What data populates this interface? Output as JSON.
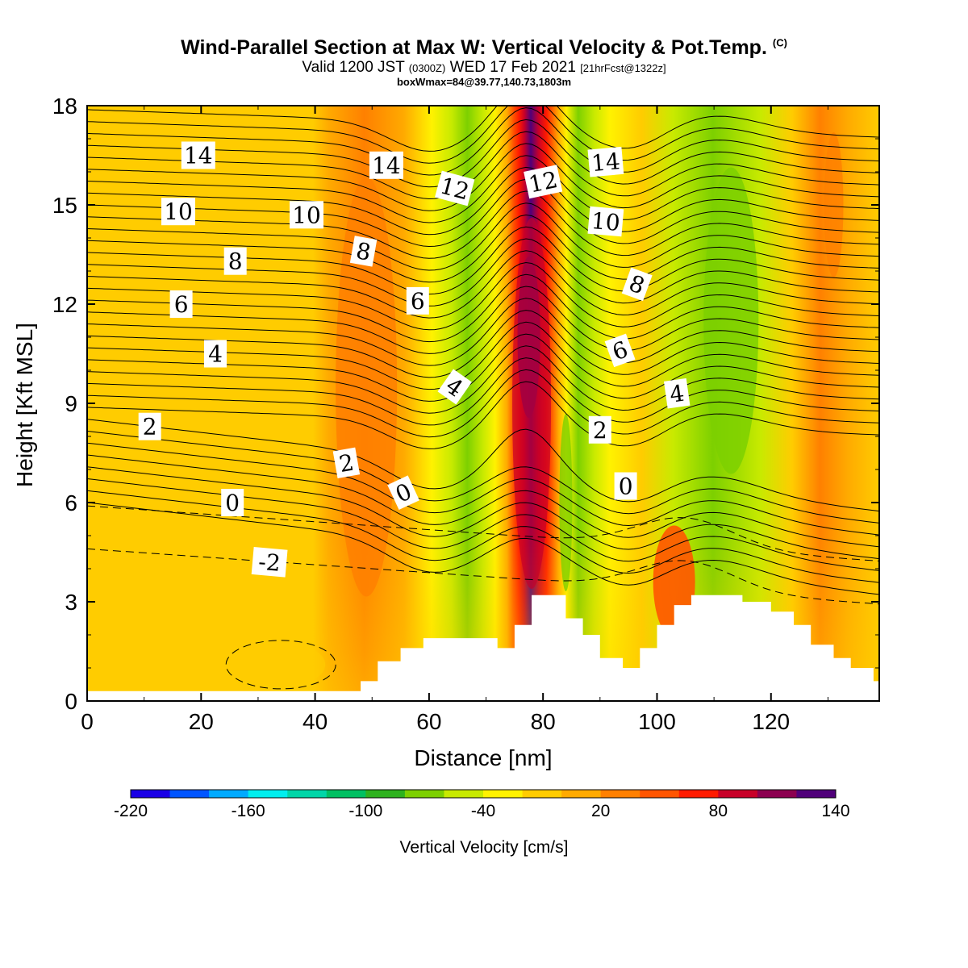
{
  "title": {
    "main": "Wind-Parallel Section at Max W: Vertical Velocity & Pot.Temp.",
    "copyright": "(C)",
    "valid_prefix": "Valid 1200 JST",
    "valid_zulu": "(0300Z)",
    "valid_date": "WED 17 Feb 2021",
    "forecast": "[21hrFcst@1322z]",
    "box_info": "boxWmax=84@39.77,140.73,1803m"
  },
  "chart_data": {
    "type": "heatmap",
    "xlabel": "Distance [nm]",
    "ylabel": "Height [Kft MSL]",
    "xlim": [
      0,
      139
    ],
    "ylim": [
      0,
      18
    ],
    "x_ticks": [
      "0",
      "20",
      "40",
      "60",
      "80",
      "100",
      "120"
    ],
    "y_ticks": [
      "0",
      "3",
      "6",
      "9",
      "12",
      "15",
      "18"
    ],
    "colorbar": {
      "label": "Vertical Velocity [cm/s]",
      "tick_labels": [
        "-220",
        "-160",
        "-100",
        "-40",
        "20",
        "80",
        "140"
      ],
      "range": [
        -220,
        140
      ],
      "colors": [
        "#1a00e6",
        "#0055ff",
        "#00aaff",
        "#00eeee",
        "#00d6a8",
        "#00c062",
        "#2eb21e",
        "#7dd000",
        "#c8ea00",
        "#fff200",
        "#ffcc00",
        "#ffaa00",
        "#ff8000",
        "#ff5500",
        "#ff1b00",
        "#c80028",
        "#8c0050",
        "#50007a"
      ]
    },
    "theta_contours": {
      "labels": [
        "14",
        "14",
        "12",
        "12",
        "14",
        "10",
        "10",
        "10",
        "8",
        "8",
        "8",
        "6",
        "6",
        "6",
        "4",
        "4",
        "4",
        "2",
        "2",
        "2",
        "0",
        "0",
        "0",
        "-2"
      ]
    },
    "vertical_velocity_peak": "Wmax 84 cm/s near 78 nm, 9-13 Kft",
    "terrain": {
      "distance_nm": [
        0,
        48,
        51,
        55,
        59,
        72,
        75,
        78,
        84,
        87,
        90,
        94,
        97,
        100,
        103,
        106,
        109,
        112,
        115,
        120,
        124,
        127,
        131,
        134,
        138,
        139
      ],
      "height_kft": [
        0.3,
        0.6,
        1.2,
        1.6,
        1.9,
        1.6,
        2.3,
        3.2,
        2.5,
        2.0,
        1.3,
        1.0,
        1.6,
        2.3,
        2.9,
        3.2,
        3.2,
        3.2,
        3.0,
        2.7,
        2.3,
        1.7,
        1.3,
        1.0,
        0.6,
        0.6
      ]
    }
  }
}
